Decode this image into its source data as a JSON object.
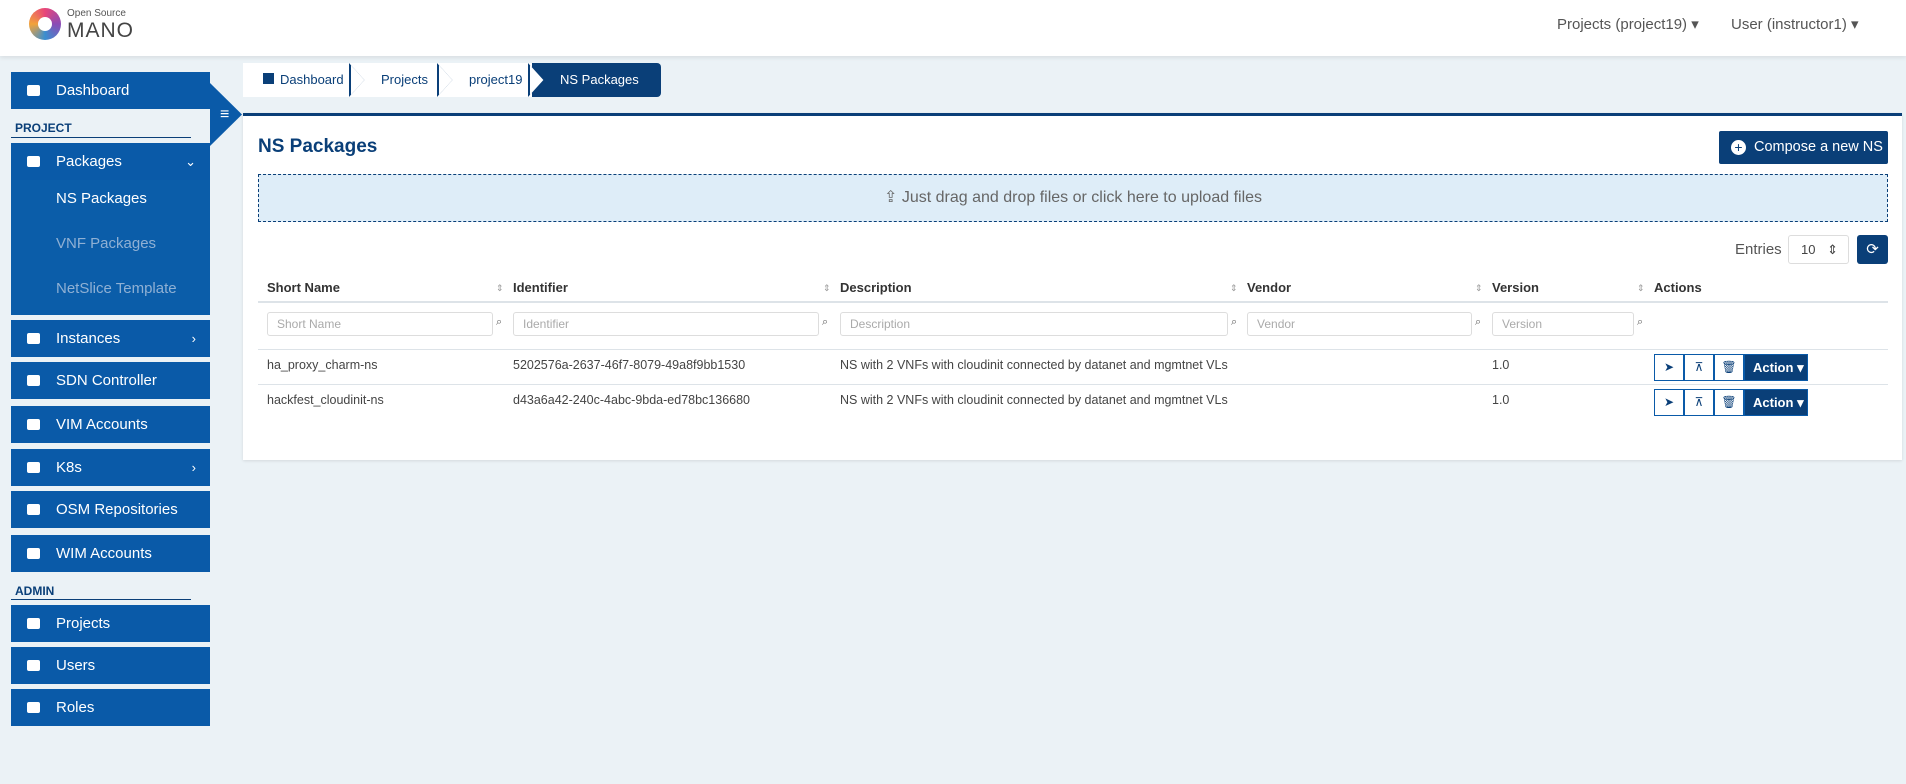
{
  "header": {
    "logo_top": "Open Source",
    "logo_main": "MANO",
    "projects": "Projects (project19)",
    "user": "User (instructor1)"
  },
  "sidebar": {
    "dashboard": "Dashboard",
    "project_section": "PROJECT",
    "packages": "Packages",
    "sub_items": [
      "NS Packages",
      "VNF Packages",
      "NetSlice Template"
    ],
    "items": [
      "Instances",
      "SDN Controller",
      "VIM Accounts",
      "K8s",
      "OSM Repositories",
      "WIM Accounts"
    ],
    "admin_section": "ADMIN",
    "admin_items": [
      "Projects",
      "Users",
      "Roles"
    ]
  },
  "breadcrumb": [
    "Dashboard",
    "Projects",
    "project19",
    "NS Packages"
  ],
  "panel": {
    "title": "NS Packages",
    "compose": "Compose a new NS",
    "upload": "Just drag and drop files or click here to upload files",
    "entries_label": "Entries",
    "entries_value": "10"
  },
  "table": {
    "columns": [
      "Short Name",
      "Identifier",
      "Description",
      "Vendor",
      "Version",
      "Actions"
    ],
    "filters": [
      "Short Name",
      "Identifier",
      "Description",
      "Vendor",
      "Version"
    ],
    "rows": [
      [
        "ha_proxy_charm-ns",
        "5202576a-2637-46f7-8079-49a8f9bb1530",
        "NS with 2 VNFs with cloudinit connected by datanet and mgmtnet VLs",
        "",
        "1.0"
      ],
      [
        "hackfest_cloudinit-ns",
        "d43a6a42-240c-4abc-9bda-ed78bc136680",
        "NS with 2 VNFs with cloudinit connected by datanet and mgmtnet VLs",
        "",
        "1.0"
      ]
    ],
    "action": "Action"
  }
}
